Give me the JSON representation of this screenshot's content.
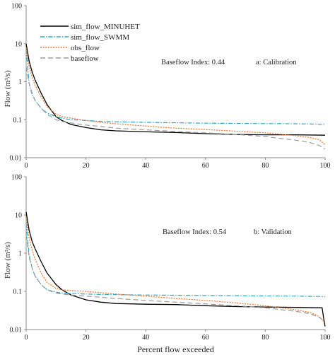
{
  "chart_data": [
    {
      "type": "line",
      "panel": "a",
      "yscale": "log",
      "xlim": [
        0,
        100
      ],
      "ylim": [
        0.01,
        100
      ],
      "xticks": [
        0,
        20,
        40,
        60,
        80,
        100
      ],
      "yticks": [
        "0.01",
        "0.1",
        "1",
        "10",
        "100"
      ],
      "xtick_labels": [
        "0",
        "20",
        "40",
        "60",
        "80",
        "100"
      ],
      "ylabel": "Flow (m³/s)",
      "xlabel": "",
      "annotations": [
        "Baseflow Index: 0.44",
        "a: Calibration"
      ],
      "legend_position": "top-left",
      "series": [
        {
          "name": "sim_flow_MINUHET",
          "color": "#000000",
          "dash": "solid",
          "x": [
            0,
            1,
            2,
            3,
            5,
            7,
            10,
            12,
            15,
            20,
            25,
            30,
            40,
            50,
            60,
            70,
            80,
            90,
            100
          ],
          "y": [
            10,
            3.5,
            1.8,
            1.1,
            0.5,
            0.25,
            0.12,
            0.095,
            0.075,
            0.062,
            0.054,
            0.051,
            0.048,
            0.046,
            0.043,
            0.041,
            0.04,
            0.04,
            0.039
          ]
        },
        {
          "name": "sim_flow_SWMM",
          "color": "#2aa7c9",
          "dash": "dashdot",
          "x": [
            0,
            1,
            2,
            3,
            5,
            7,
            10,
            12,
            15,
            20,
            25,
            30,
            40,
            50,
            60,
            70,
            80,
            90,
            100
          ],
          "y": [
            7,
            0.9,
            0.45,
            0.32,
            0.2,
            0.15,
            0.12,
            0.11,
            0.1,
            0.095,
            0.09,
            0.088,
            0.085,
            0.083,
            0.081,
            0.08,
            0.079,
            0.078,
            0.076
          ]
        },
        {
          "name": "obs_flow",
          "color": "#e8742a",
          "dash": "dotted",
          "x": [
            0,
            1,
            2,
            3,
            5,
            7,
            10,
            12,
            15,
            20,
            25,
            30,
            40,
            50,
            60,
            70,
            80,
            90,
            95,
            98,
            100
          ],
          "y": [
            8,
            2.5,
            1.3,
            0.8,
            0.4,
            0.22,
            0.14,
            0.12,
            0.11,
            0.095,
            0.085,
            0.078,
            0.068,
            0.06,
            0.055,
            0.05,
            0.045,
            0.038,
            0.034,
            0.03,
            0.022
          ]
        },
        {
          "name": "baseflow",
          "color": "#9b9b9b",
          "dash": "dashed",
          "x": [
            0,
            1,
            2,
            3,
            5,
            7,
            10,
            12,
            15,
            20,
            25,
            30,
            40,
            50,
            60,
            70,
            80,
            90,
            95,
            98,
            100
          ],
          "y": [
            2.5,
            0.9,
            0.5,
            0.32,
            0.2,
            0.14,
            0.1,
            0.09,
            0.082,
            0.072,
            0.066,
            0.06,
            0.054,
            0.049,
            0.045,
            0.041,
            0.036,
            0.029,
            0.025,
            0.021,
            0.017
          ]
        }
      ]
    },
    {
      "type": "line",
      "panel": "b",
      "yscale": "log",
      "xlim": [
        0,
        100
      ],
      "ylim": [
        0.01,
        100
      ],
      "xticks": [
        0,
        20,
        40,
        60,
        80,
        100
      ],
      "yticks": [
        "0.01",
        "0.1",
        "1",
        "10",
        "100"
      ],
      "xtick_labels": [
        "0",
        "20",
        "40",
        "60",
        "80",
        "100"
      ],
      "ylabel": "Flow (m³/s)",
      "xlabel": "Percent flow exceeded",
      "annotations": [
        "Baseflow Index: 0.54",
        "b: Validation"
      ],
      "series": [
        {
          "name": "sim_flow_MINUHET",
          "color": "#000000",
          "dash": "solid",
          "x": [
            0,
            1,
            2,
            3,
            5,
            7,
            10,
            12,
            15,
            20,
            25,
            30,
            40,
            50,
            60,
            70,
            80,
            90,
            99,
            99.5,
            100
          ],
          "y": [
            12,
            4,
            2,
            1.3,
            0.6,
            0.3,
            0.15,
            0.11,
            0.08,
            0.06,
            0.052,
            0.048,
            0.046,
            0.045,
            0.042,
            0.04,
            0.039,
            0.038,
            0.037,
            0.02,
            0.012
          ]
        },
        {
          "name": "sim_flow_SWMM",
          "color": "#2aa7c9",
          "dash": "dashdot",
          "x": [
            0,
            1,
            2,
            3,
            5,
            7,
            10,
            12,
            15,
            20,
            25,
            30,
            40,
            50,
            60,
            70,
            80,
            90,
            100
          ],
          "y": [
            6,
            0.9,
            0.4,
            0.25,
            0.15,
            0.11,
            0.095,
            0.09,
            0.088,
            0.085,
            0.083,
            0.082,
            0.08,
            0.079,
            0.078,
            0.077,
            0.076,
            0.075,
            0.073
          ]
        },
        {
          "name": "obs_flow",
          "color": "#e8742a",
          "dash": "dotted",
          "x": [
            0,
            1,
            2,
            3,
            5,
            7,
            10,
            12,
            15,
            20,
            25,
            30,
            40,
            50,
            60,
            70,
            80,
            90,
            95,
            98,
            100
          ],
          "y": [
            9,
            2.5,
            1.2,
            0.7,
            0.3,
            0.17,
            0.12,
            0.11,
            0.105,
            0.1,
            0.092,
            0.085,
            0.075,
            0.065,
            0.058,
            0.05,
            0.042,
            0.033,
            0.028,
            0.022,
            0.015
          ]
        },
        {
          "name": "baseflow",
          "color": "#9b9b9b",
          "dash": "dashed",
          "x": [
            0,
            1,
            2,
            3,
            5,
            7,
            10,
            12,
            15,
            20,
            25,
            30,
            40,
            50,
            60,
            70,
            80,
            90,
            95,
            98,
            100
          ],
          "y": [
            3,
            0.8,
            0.4,
            0.25,
            0.15,
            0.11,
            0.09,
            0.085,
            0.08,
            0.075,
            0.07,
            0.065,
            0.058,
            0.052,
            0.047,
            0.042,
            0.037,
            0.03,
            0.026,
            0.021,
            0.016
          ]
        }
      ]
    }
  ]
}
